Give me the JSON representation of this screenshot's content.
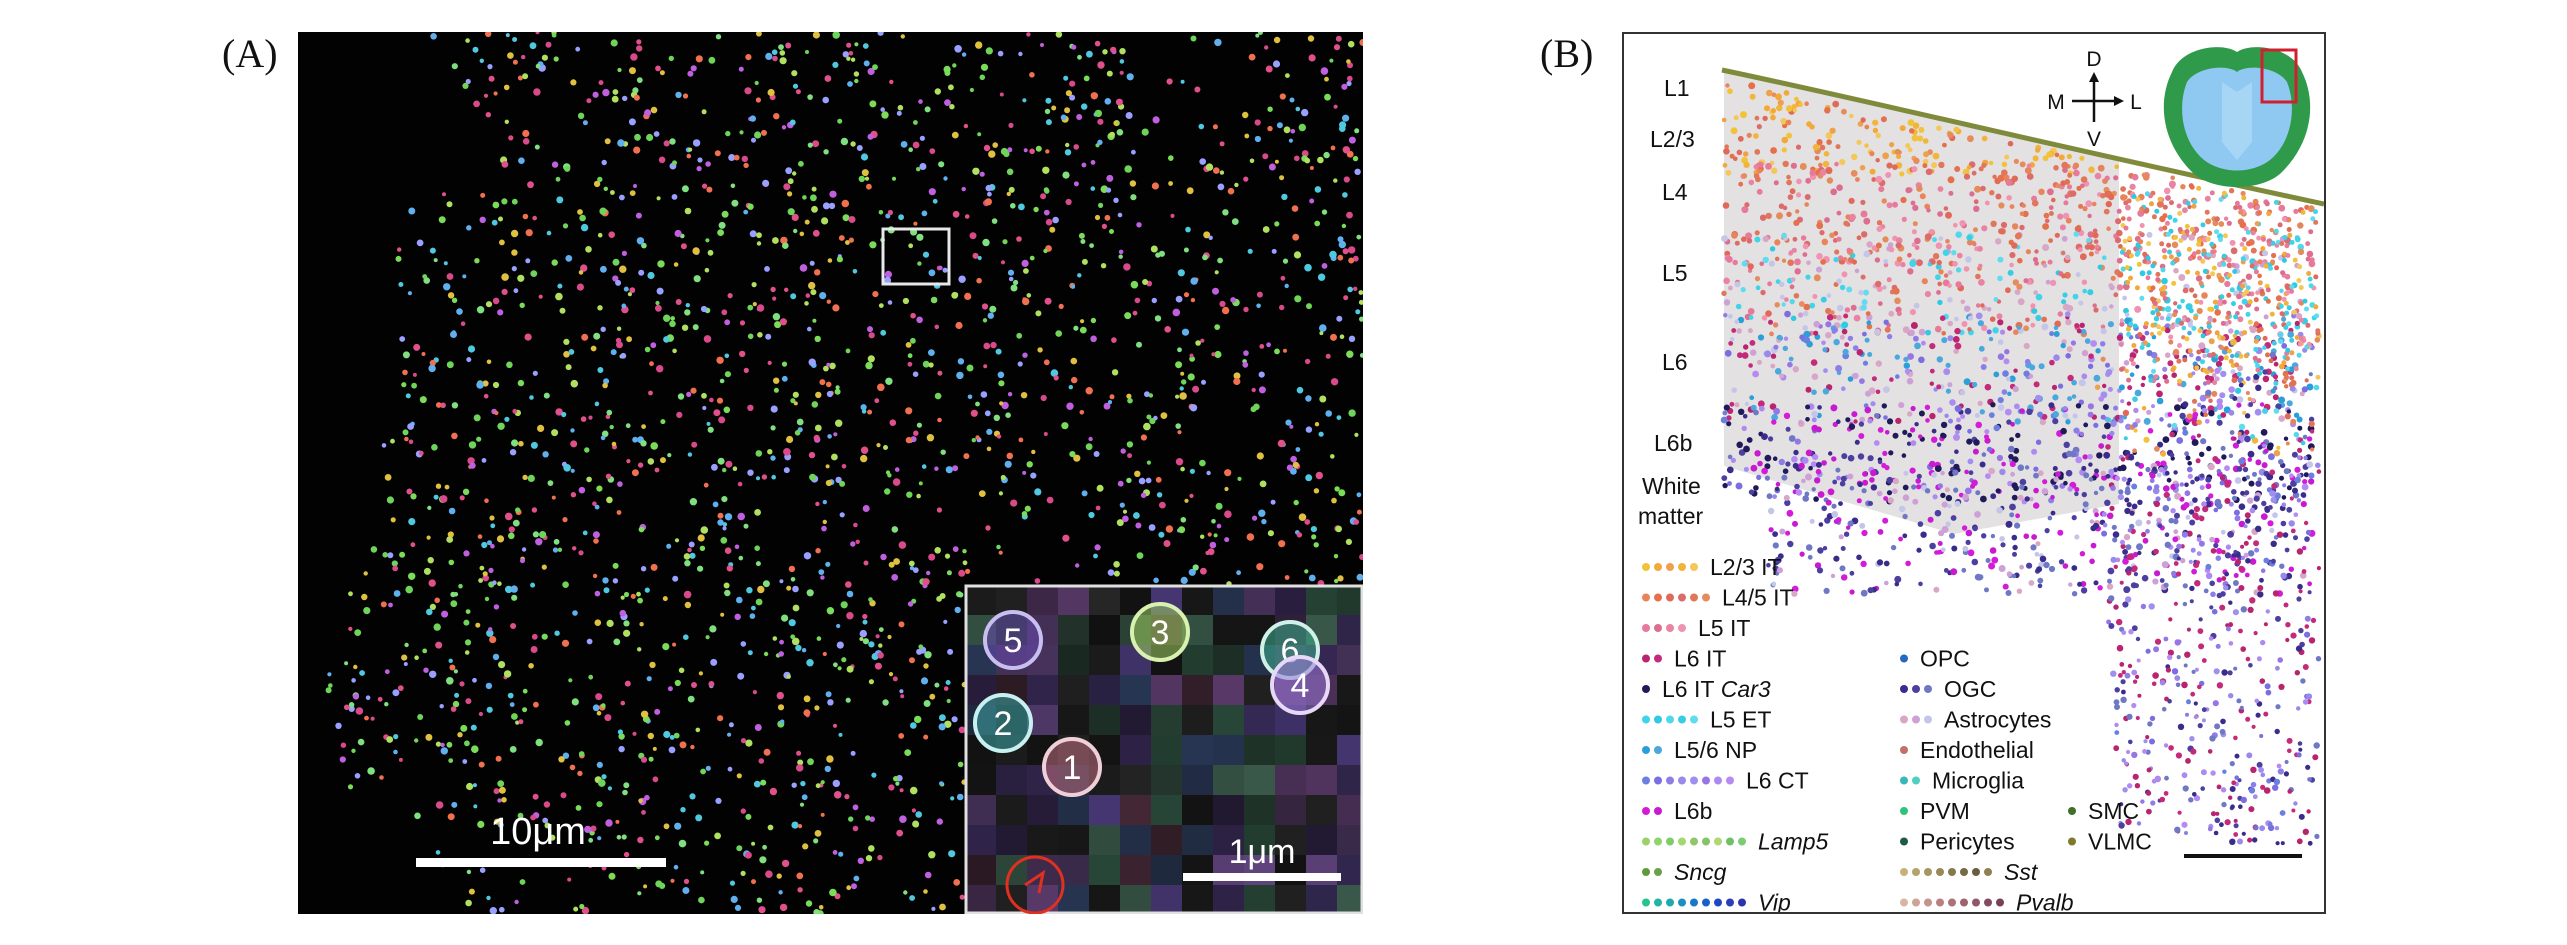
{
  "panel_a": {
    "tag": "(A)",
    "scale_bar_label": "10μm",
    "inset": {
      "scale_bar_label": "1μm",
      "spots": [
        {
          "label": "5",
          "color": "#c8bff0"
        },
        {
          "label": "3",
          "color": "#d8f0b0"
        },
        {
          "label": "6",
          "color": "#d0f0e8"
        },
        {
          "label": "4",
          "color": "#e8d8f8"
        },
        {
          "label": "2",
          "color": "#c8f0f0"
        },
        {
          "label": "1",
          "color": "#f0d0d8"
        }
      ]
    }
  },
  "panel_b": {
    "tag": "(B)",
    "layers": [
      "L1",
      "L2/3",
      "L4",
      "L5",
      "L6",
      "L6b",
      "White",
      "matter"
    ],
    "compass": {
      "up": "D",
      "down": "V",
      "left": "M",
      "right": "L"
    },
    "legend": [
      {
        "name": "L2/3 IT",
        "italic": false,
        "colors": [
          "#f3c23b",
          "#f2a93a",
          "#eea04a",
          "#f0b53a",
          "#f3c75a"
        ]
      },
      {
        "name": "L4/5 IT",
        "italic": false,
        "colors": [
          "#e8845a",
          "#e4704c",
          "#e06a5a",
          "#dc6b6b",
          "#e0765a",
          "#e58c5c"
        ]
      },
      {
        "name": "L5 IT",
        "italic": false,
        "colors": [
          "#e7799a",
          "#dd6e90",
          "#e883a2",
          "#f092b0"
        ]
      },
      {
        "name": "L6 IT",
        "italic": false,
        "colors": [
          "#b8246e",
          "#c42a7a"
        ]
      },
      {
        "name": "L6 IT",
        "name_suffix": "Car3",
        "italic": false,
        "colors": [
          "#1f1a5a"
        ]
      },
      {
        "name": "L5 ET",
        "italic": false,
        "colors": [
          "#3fd4e8",
          "#2fc9e0",
          "#4fd8ec",
          "#39cde4",
          "#5fdcef"
        ]
      },
      {
        "name": "L5/6 NP",
        "italic": false,
        "colors": [
          "#2a9fd8",
          "#4aa8dd"
        ]
      },
      {
        "name": "L6 CT",
        "italic": false,
        "colors": [
          "#6b7fe0",
          "#7a6ee0",
          "#8c7ee8",
          "#9a88ea",
          "#a08fee",
          "#9576e4",
          "#ad8af0",
          "#b58af2"
        ]
      },
      {
        "name": "L6b",
        "italic": false,
        "colors": [
          "#d41bd8",
          "#c81bd0"
        ]
      },
      {
        "name": "Lamp5",
        "italic": true,
        "colors": [
          "#9bd06a",
          "#8ed36b",
          "#7fcc6a",
          "#a3d86e",
          "#92c66a",
          "#86c26a",
          "#b0d86f",
          "#6fbf68",
          "#7ccc72"
        ]
      },
      {
        "name": "Sncg",
        "italic": true,
        "colors": [
          "#5f9a3a",
          "#6aa04a"
        ]
      },
      {
        "name": "Vip",
        "italic": true,
        "colors": [
          "#26c48a",
          "#23b5a0",
          "#20a7b0",
          "#1f8fc0",
          "#1b78c8",
          "#1b5fc8",
          "#1f48c0",
          "#2a3fb5",
          "#2a36a8"
        ]
      },
      {
        "name": "OPC",
        "italic": false,
        "colors": [
          "#2468c4"
        ]
      },
      {
        "name": "OGC",
        "italic": false,
        "colors": [
          "#3a2c8a",
          "#4b3fa0",
          "#6f78c4"
        ]
      },
      {
        "name": "Astrocytes",
        "italic": false,
        "colors": [
          "#d7a7c5",
          "#cda0d6",
          "#c3c6e8"
        ]
      },
      {
        "name": "Endothelial",
        "italic": false,
        "colors": [
          "#c4706a"
        ]
      },
      {
        "name": "Microglia",
        "italic": false,
        "colors": [
          "#39b8b8",
          "#4fcfc0"
        ]
      },
      {
        "name": "PVM",
        "italic": false,
        "colors": [
          "#32c27a"
        ]
      },
      {
        "name": "SMC",
        "italic": false,
        "colors": [
          "#3f6f2a"
        ]
      },
      {
        "name": "Pericytes",
        "italic": false,
        "colors": [
          "#1f5a48"
        ]
      },
      {
        "name": "VLMC",
        "italic": false,
        "colors": [
          "#7f7a2a"
        ]
      },
      {
        "name": "Sst",
        "italic": true,
        "colors": [
          "#c7b27a",
          "#b4a36c",
          "#a3975e",
          "#958a58",
          "#857a4e",
          "#766a46",
          "#675e40",
          "#8f7f52"
        ]
      },
      {
        "name": "Pvalb",
        "italic": true,
        "colors": [
          "#d9b6a0",
          "#cfa494",
          "#c4938a",
          "#b88080",
          "#ab7278",
          "#9d6470",
          "#8f5768",
          "#824b60",
          "#754058"
        ]
      }
    ]
  },
  "colors": {
    "cortex_shade": "#e4e1e2",
    "cortex_outline": "#7f8b3a",
    "inset_highlight": "#e03020"
  }
}
